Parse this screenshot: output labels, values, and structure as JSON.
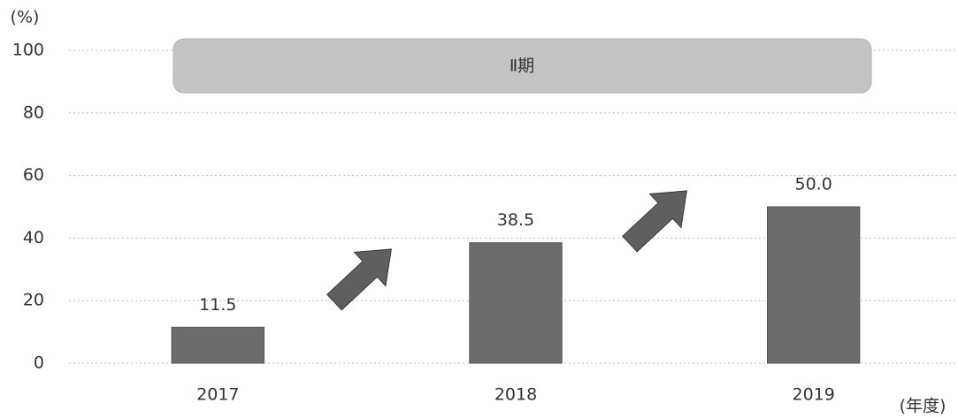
{
  "chart_data": {
    "type": "bar",
    "y_axis_label": "(%)",
    "x_axis_label": "(年度)",
    "annotation": "Ⅱ期",
    "categories": [
      "2017",
      "2018",
      "2019"
    ],
    "values": [
      11.5,
      38.5,
      50.0
    ],
    "value_labels": [
      "11.5",
      "38.5",
      "50.0"
    ],
    "color": "#6b6b6b",
    "ylim": [
      0,
      100
    ],
    "yticks": [
      0,
      20,
      40,
      60,
      80,
      100
    ],
    "grid": true
  }
}
